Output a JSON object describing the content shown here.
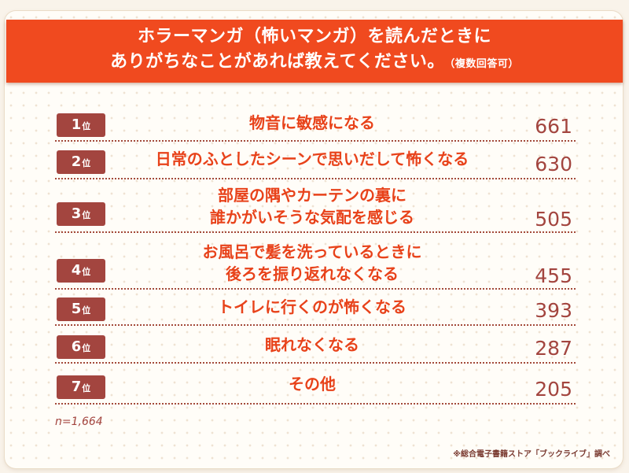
{
  "header": {
    "line1": "ホラーマンガ（怖いマンガ）を読んだときに",
    "line2": "ありがちなことがあれば教えてください。",
    "note": "（複数回答可）"
  },
  "rank_suffix": "位",
  "chart_data": {
    "type": "table",
    "columns": [
      "rank",
      "answer",
      "count"
    ],
    "rows": [
      {
        "rank": "1",
        "label_lines": [
          "物音に敏感になる"
        ],
        "value": 661
      },
      {
        "rank": "2",
        "label_lines": [
          "日常のふとしたシーンで思いだして怖くなる"
        ],
        "value": 630
      },
      {
        "rank": "3",
        "label_lines": [
          "部屋の隅やカーテンの裏に",
          "誰かがいそうな気配を感じる"
        ],
        "value": 505
      },
      {
        "rank": "4",
        "label_lines": [
          "お風呂で髪を洗っているときに",
          "後ろを振り返れなくなる"
        ],
        "value": 455
      },
      {
        "rank": "5",
        "label_lines": [
          "トイレに行くのが怖くなる"
        ],
        "value": 393
      },
      {
        "rank": "6",
        "label_lines": [
          "眠れなくなる"
        ],
        "value": 287
      },
      {
        "rank": "7",
        "label_lines": [
          "その他"
        ],
        "value": 205
      }
    ],
    "sample_size": "n=1,664",
    "source": "※総合電子書籍ストア「ブックライブ」調べ"
  },
  "colors": {
    "header_bg": "#f04a1f",
    "badge_bg": "#a3453f",
    "label_text": "#e8421a",
    "value_text": "#a3453f"
  }
}
